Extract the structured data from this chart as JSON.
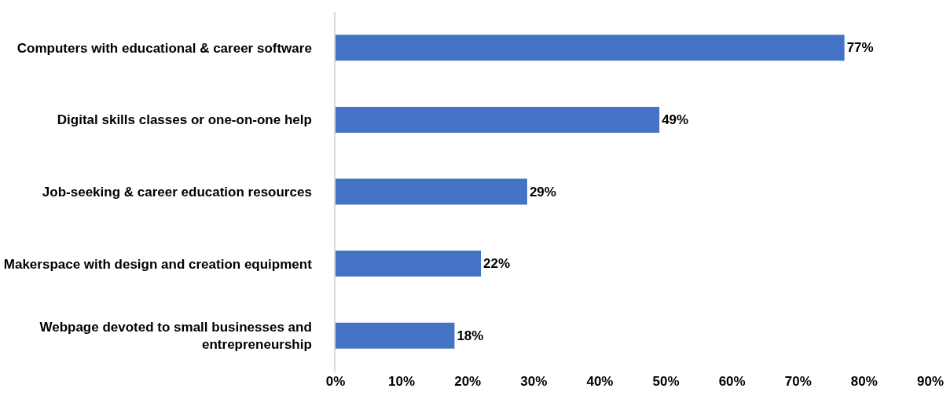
{
  "chart_data": {
    "type": "bar",
    "orientation": "horizontal",
    "categories": [
      "Computers with educational & career software",
      "Digital skills classes or one-on-one help",
      "Job-seeking & career education resources",
      "Makerspace with design and creation equipment",
      "Webpage devoted to small businesses and entrepreneurship"
    ],
    "values": [
      77,
      49,
      29,
      22,
      18
    ],
    "value_labels": [
      "77%",
      "49%",
      "29%",
      "22%",
      "18%"
    ],
    "color": "#4472c4",
    "xlim": [
      0,
      90
    ],
    "xticks": [
      {
        "value": 0,
        "label": "0%"
      },
      {
        "value": 10,
        "label": "10%"
      },
      {
        "value": 20,
        "label": "20%"
      },
      {
        "value": 30,
        "label": "30%"
      },
      {
        "value": 40,
        "label": "40%"
      },
      {
        "value": 50,
        "label": "50%"
      },
      {
        "value": 60,
        "label": "60%"
      },
      {
        "value": 70,
        "label": "70%"
      },
      {
        "value": 80,
        "label": "80%"
      },
      {
        "value": 90,
        "label": "90%"
      }
    ]
  }
}
